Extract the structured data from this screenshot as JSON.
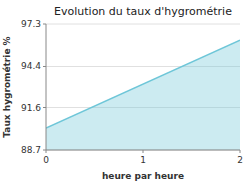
{
  "chart_data": {
    "type": "area",
    "title": "Evolution du taux d'hygrométrie",
    "x_label": "heure par heure",
    "y_label": "Taux hygrométrie %",
    "x": [
      0,
      2
    ],
    "values": [
      90.2,
      96.2
    ],
    "color": "#6ec6d8",
    "xlim": [
      0,
      2
    ],
    "ylim": [
      88.7,
      97.3
    ],
    "xticks": [
      0,
      1,
      2
    ],
    "yticks": [
      88.7,
      91.6,
      94.4,
      97.3
    ],
    "grid": true
  }
}
